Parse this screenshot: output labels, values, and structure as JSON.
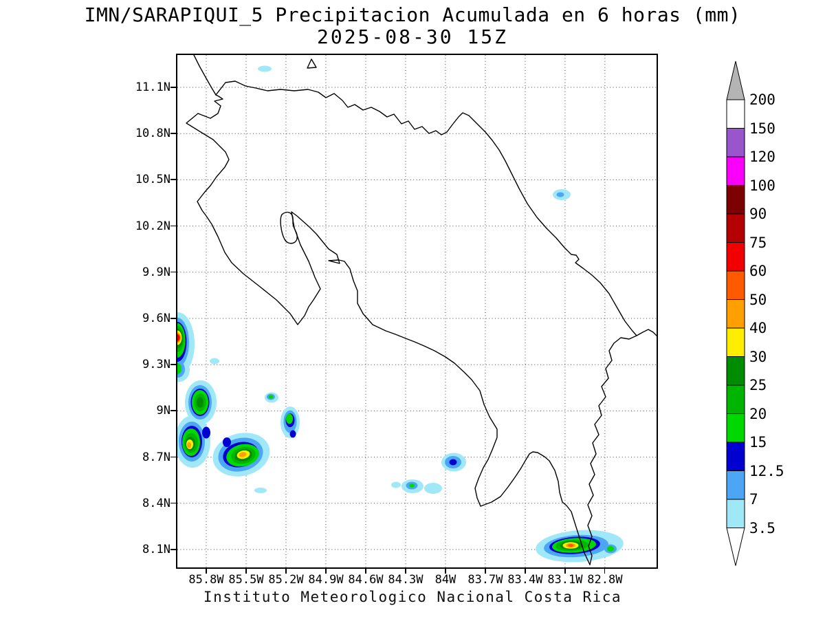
{
  "title": {
    "line1": "IMN/SARAPIQUI_5 Precipitacion Acumulada en 6 horas (mm)",
    "line2": "2025-08-30 15Z"
  },
  "footer": "Instituto Meteorologico Nacional Costa Rica",
  "axes": {
    "lat_labels": [
      "11.1N",
      "10.8N",
      "10.5N",
      "10.2N",
      "9.9N",
      "9.6N",
      "9.3N",
      "9N",
      "8.7N",
      "8.4N",
      "8.1N"
    ],
    "lon_labels": [
      "85.8W",
      "85.5W",
      "85.2W",
      "84.9W",
      "84.6W",
      "84.3W",
      "84W",
      "83.7W",
      "83.4W",
      "83.1W",
      "82.8W"
    ]
  },
  "legend": {
    "tick_labels": [
      "200",
      "150",
      "120",
      "100",
      "90",
      "75",
      "60",
      "50",
      "40",
      "30",
      "25",
      "20",
      "15",
      "12.5",
      "7",
      "3.5"
    ],
    "box_colors_top_to_bottom": [
      "#ffffff",
      "#9955cc",
      "#fa00fa",
      "#7d0000",
      "#b40000",
      "#f00000",
      "#ff5a00",
      "#ffa000",
      "#ffee00",
      "#008c00",
      "#00b400",
      "#00d800",
      "#0000d0",
      "#4da6f5",
      "#a0e8f8"
    ],
    "over_color": "#b4b4b4",
    "under_color": "#ffffff"
  },
  "chart_data": {
    "type": "heatmap",
    "title": "IMN/SARAPIQUI_5 Precipitacion Acumulada en 6 horas (mm) 2025-08-30 15Z",
    "units": "mm",
    "region": "Costa Rica",
    "lon_ticks_w": [
      85.8,
      85.5,
      85.2,
      84.9,
      84.6,
      84.3,
      84.0,
      83.7,
      83.4,
      83.1,
      82.8
    ],
    "lat_ticks_n": [
      11.1,
      10.8,
      10.5,
      10.2,
      9.9,
      9.6,
      9.3,
      9.0,
      8.7,
      8.4,
      8.1
    ],
    "contour_levels_mm": [
      3.5,
      7,
      12.5,
      15,
      20,
      25,
      30,
      40,
      50,
      60,
      75,
      90,
      100,
      120,
      150,
      200
    ],
    "precip_cells": [
      {
        "lon_w": 86.0,
        "lat_n": 9.47,
        "peak_mm": "60-75"
      },
      {
        "lon_w": 85.95,
        "lat_n": 9.05,
        "peak_mm": "25-30"
      },
      {
        "lon_w": 85.91,
        "lat_n": 8.79,
        "peak_mm": "50-60"
      },
      {
        "lon_w": 85.53,
        "lat_n": 8.72,
        "peak_mm": "50-60"
      },
      {
        "lon_w": 85.31,
        "lat_n": 9.09,
        "peak_mm": "15-20"
      },
      {
        "lon_w": 85.17,
        "lat_n": 8.93,
        "peak_mm": "15-20"
      },
      {
        "lon_w": 84.25,
        "lat_n": 8.51,
        "peak_mm": "15-20"
      },
      {
        "lon_w": 83.94,
        "lat_n": 8.67,
        "peak_mm": "12.5-15"
      },
      {
        "lon_w": 83.13,
        "lat_n": 10.4,
        "peak_mm": "7-12.5"
      },
      {
        "lon_w": 85.36,
        "lat_n": 11.22,
        "peak_mm": "3.5-7"
      },
      {
        "lon_w": 83.06,
        "lat_n": 8.13,
        "peak_mm": "50-60"
      },
      {
        "lon_w": 82.76,
        "lat_n": 8.1,
        "peak_mm": "15-20"
      }
    ]
  }
}
